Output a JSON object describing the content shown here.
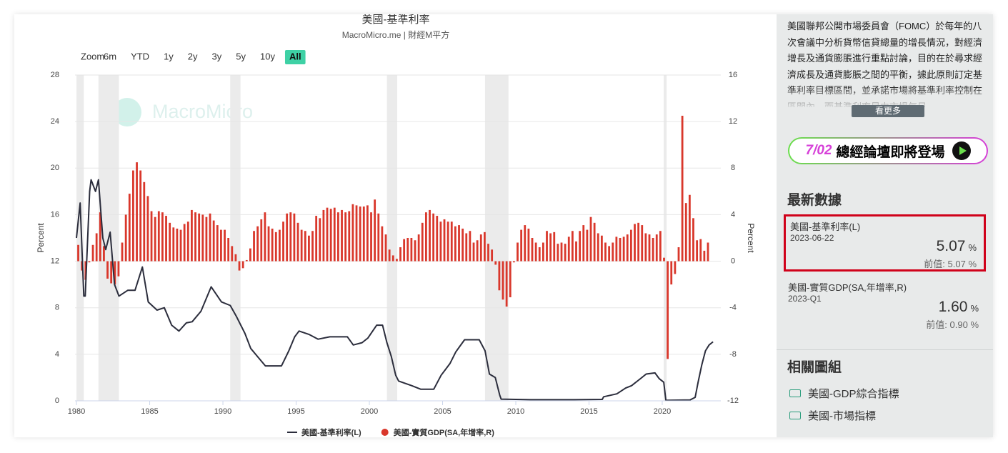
{
  "chart_data": {
    "type": "combo",
    "title": "美國-基準利率",
    "subtitle": "MacroMicro.me | 財經M平方",
    "watermark": "MacroMicro",
    "y_label": "Percent",
    "y2_label": "Percent",
    "xlim": [
      1979.9,
      2024.0
    ],
    "xticks": [
      1980,
      1985,
      1990,
      1995,
      2000,
      2005,
      2010,
      2015,
      2020
    ],
    "ylim": [
      0,
      28
    ],
    "yticks": [
      0,
      4,
      8,
      12,
      16,
      20,
      24,
      28
    ],
    "y2lim": [
      -12,
      16
    ],
    "y2ticks": [
      -12,
      -8,
      -4,
      0,
      4,
      8,
      12,
      16
    ],
    "grid": true,
    "shaded_periods": [
      [
        1980.0,
        1980.5
      ],
      [
        1981.5,
        1982.9
      ],
      [
        1990.5,
        1991.2
      ],
      [
        2001.2,
        2001.9
      ],
      [
        2007.9,
        2009.5
      ],
      [
        2020.1,
        2020.3
      ]
    ],
    "series": [
      {
        "name": "美國-基準利率(L)",
        "type": "line",
        "color": "#2b2d3c",
        "x": [
          1980.0,
          1980.25,
          1980.5,
          1980.6,
          1980.9,
          1981.0,
          1981.3,
          1981.5,
          1981.8,
          1982.0,
          1982.3,
          1982.6,
          1982.9,
          1983.5,
          1984.0,
          1984.5,
          1984.9,
          1985.5,
          1986.0,
          1986.5,
          1987.0,
          1987.5,
          1987.9,
          1988.5,
          1989.2,
          1989.9,
          1990.5,
          1990.9,
          1991.5,
          1991.9,
          1992.3,
          1992.9,
          1993.5,
          1994.0,
          1994.5,
          1994.9,
          1995.2,
          1995.9,
          1996.5,
          1997.3,
          1998.5,
          1998.9,
          1999.5,
          1999.9,
          2000.5,
          2000.9,
          2001.2,
          2001.5,
          2001.8,
          2002.0,
          2002.9,
          2003.5,
          2004.4,
          2004.9,
          2005.5,
          2005.9,
          2006.5,
          2007.5,
          2007.9,
          2008.2,
          2008.6,
          2008.9,
          2009.0,
          2011.0,
          2014.0,
          2015.9,
          2016.0,
          2016.9,
          2017.5,
          2017.9,
          2018.5,
          2018.9,
          2019.5,
          2019.8,
          2020.1,
          2020.25,
          2021.9,
          2022.25,
          2022.45,
          2022.7,
          2022.95,
          2023.2,
          2023.47
        ],
        "values": [
          14,
          17,
          9,
          9,
          18,
          19,
          18,
          19,
          14,
          13,
          14.5,
          10,
          9,
          9.5,
          9.5,
          11.5,
          8.5,
          7.8,
          8,
          6.5,
          6,
          6.7,
          6.8,
          7.7,
          9.8,
          8.5,
          8.2,
          7.3,
          5.8,
          4.5,
          3.9,
          3,
          3,
          3,
          4.3,
          5.5,
          6,
          5.7,
          5.3,
          5.5,
          5.5,
          4.8,
          5,
          5.4,
          6.5,
          6.5,
          5,
          3.8,
          2.2,
          1.7,
          1.3,
          1,
          1,
          2.2,
          3.2,
          4.2,
          5.25,
          5.25,
          4.3,
          2.3,
          2,
          0.5,
          0.15,
          0.1,
          0.1,
          0.12,
          0.35,
          0.6,
          1.1,
          1.3,
          1.9,
          2.3,
          2.4,
          1.9,
          1.6,
          0.05,
          0.08,
          0.3,
          1.6,
          3.1,
          4.3,
          4.8,
          5.07
        ]
      },
      {
        "name": "美國-實質GDP(SA,年增率,R)",
        "type": "bar",
        "axis": "y2",
        "color": "#d9372b",
        "x": [
          1980,
          1980.25,
          1980.5,
          1980.75,
          1981,
          1981.25,
          1981.5,
          1981.75,
          1982,
          1982.25,
          1982.5,
          1982.75,
          1983,
          1983.25,
          1983.5,
          1983.75,
          1984,
          1984.25,
          1984.5,
          1984.75,
          1985,
          1985.25,
          1985.5,
          1985.75,
          1986,
          1986.25,
          1986.5,
          1986.75,
          1987,
          1987.25,
          1987.5,
          1987.75,
          1988,
          1988.25,
          1988.5,
          1988.75,
          1989,
          1989.25,
          1989.5,
          1989.75,
          1990,
          1990.25,
          1990.5,
          1990.75,
          1991,
          1991.25,
          1991.5,
          1991.75,
          1992,
          1992.25,
          1992.5,
          1992.75,
          1993,
          1993.25,
          1993.5,
          1993.75,
          1994,
          1994.25,
          1994.5,
          1994.75,
          1995,
          1995.25,
          1995.5,
          1995.75,
          1996,
          1996.25,
          1996.5,
          1996.75,
          1997,
          1997.25,
          1997.5,
          1997.75,
          1998,
          1998.25,
          1998.5,
          1998.75,
          1999,
          1999.25,
          1999.5,
          1999.75,
          2000,
          2000.25,
          2000.5,
          2000.75,
          2001,
          2001.25,
          2001.5,
          2001.75,
          2002,
          2002.25,
          2002.5,
          2002.75,
          2003,
          2003.25,
          2003.5,
          2003.75,
          2004,
          2004.25,
          2004.5,
          2004.75,
          2005,
          2005.25,
          2005.5,
          2005.75,
          2006,
          2006.25,
          2006.5,
          2006.75,
          2007,
          2007.25,
          2007.5,
          2007.75,
          2008,
          2008.25,
          2008.5,
          2008.75,
          2009,
          2009.25,
          2009.5,
          2009.75,
          2010,
          2010.25,
          2010.5,
          2010.75,
          2011,
          2011.25,
          2011.5,
          2011.75,
          2012,
          2012.25,
          2012.5,
          2012.75,
          2013,
          2013.25,
          2013.5,
          2013.75,
          2014,
          2014.25,
          2014.5,
          2014.75,
          2015,
          2015.25,
          2015.5,
          2015.75,
          2016,
          2016.25,
          2016.5,
          2016.75,
          2017,
          2017.25,
          2017.5,
          2017.75,
          2018,
          2018.25,
          2018.5,
          2018.75,
          2019,
          2019.25,
          2019.5,
          2019.75,
          2020,
          2020.25,
          2020.5,
          2020.75,
          2021,
          2021.25,
          2021.5,
          2021.75,
          2022,
          2022.25,
          2022.5,
          2022.75,
          2023
        ],
        "values": [
          1.4,
          -0.8,
          -1.6,
          -0.1,
          1.4,
          2.4,
          4.2,
          1.3,
          -1.5,
          -1.9,
          -2.0,
          -1.3,
          1.6,
          4.0,
          5.8,
          7.8,
          8.5,
          7.8,
          6.8,
          5.6,
          4.3,
          3.8,
          4.3,
          4.2,
          3.9,
          3.3,
          2.9,
          2.8,
          2.7,
          3.2,
          3.4,
          4.4,
          4.2,
          4.1,
          4.0,
          3.8,
          4.1,
          3.5,
          3.1,
          2.7,
          2.7,
          2.0,
          1.3,
          0.6,
          -0.8,
          -0.6,
          0.1,
          1.1,
          2.6,
          3.0,
          3.6,
          4.2,
          3.0,
          2.8,
          2.5,
          2.7,
          3.4,
          4.1,
          4.2,
          4.1,
          3.3,
          2.7,
          2.6,
          2.2,
          2.6,
          3.9,
          3.7,
          4.4,
          4.6,
          4.5,
          4.6,
          4.2,
          4.4,
          4.2,
          4.3,
          4.9,
          4.8,
          4.7,
          4.7,
          4.8,
          4.2,
          5.3,
          4.1,
          3.0,
          2.3,
          1.0,
          0.5,
          0.2,
          1.2,
          1.9,
          2.0,
          2.0,
          1.8,
          2.3,
          3.3,
          4.2,
          4.4,
          4.1,
          3.9,
          3.4,
          3.6,
          3.4,
          3.4,
          3.0,
          3.1,
          2.8,
          2.4,
          2.6,
          1.6,
          1.8,
          2.3,
          2.5,
          1.5,
          1.0,
          -0.3,
          -2.5,
          -3.3,
          -3.9,
          -3.1,
          -0.1,
          1.6,
          2.7,
          3.1,
          2.8,
          2.0,
          1.6,
          1.2,
          1.6,
          2.6,
          2.4,
          2.5,
          1.5,
          1.6,
          1.5,
          2.1,
          2.6,
          1.7,
          2.6,
          3.1,
          2.7,
          3.8,
          3.3,
          2.4,
          2.2,
          1.6,
          1.3,
          1.6,
          2.1,
          2.0,
          2.1,
          2.3,
          2.7,
          3.2,
          3.3,
          3.1,
          2.4,
          2.3,
          2.0,
          2.3,
          2.6,
          0.3,
          -8.4,
          -2.0,
          -1.1,
          1.2,
          12.5,
          5.0,
          5.7,
          3.7,
          1.8,
          1.9,
          0.9,
          1.6
        ]
      }
    ]
  },
  "range_selector": {
    "label": "Zoom",
    "buttons": [
      "6m",
      "YTD",
      "1y",
      "2y",
      "3y",
      "5y",
      "10y",
      "All"
    ],
    "active_index": 7
  },
  "sidebar": {
    "description": "美國聯邦公開市場委員會（FOMC）於每年的八次會議中分析貨幣信貸總量的增長情況，對經濟增長及通貨膨脹進行重點討論，目的在於尋求經濟成長及通貨膨脹之間的平衡，據此原則訂定基準利率目標區間，並承諾市場將基準利率控制在區間內，而基準利率是由市場每日",
    "more": "看更多",
    "banner": {
      "date": "7/02",
      "text": "總經論壇即將登場"
    },
    "latest_title": "最新數據",
    "cards": [
      {
        "name": "美國-基準利率(L)",
        "date": "2023-06-22",
        "value": 5.07,
        "unit": "%",
        "prev_label": "前值:",
        "prev_value": 5.07
      },
      {
        "name": "美國-實質GDP(SA,年增率,R)",
        "date": "2023-Q1",
        "value": 1.6,
        "value_label": "1.60",
        "unit": "%",
        "prev_label": "前值:",
        "prev_value": 0.9,
        "prev_value_label": "0.90"
      }
    ],
    "related_title": "相關圖組",
    "links": [
      "美國-GDP綜合指標",
      "美國-市場指標"
    ]
  }
}
